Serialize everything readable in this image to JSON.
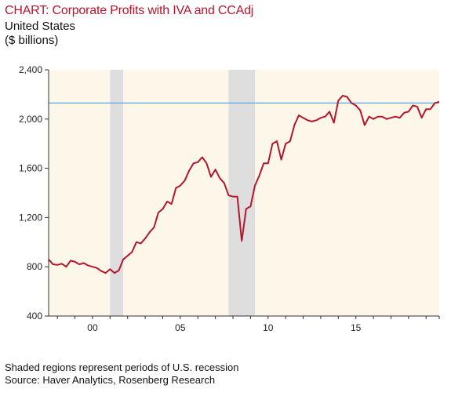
{
  "title": "CHART: Corporate Profits with IVA and CCAdj",
  "subtitle_line1": "United States",
  "subtitle_line2": "($ billions)",
  "footer": {
    "note": "Shaded regions represent periods of U.S. recession",
    "source": "Source: Haver Analytics, Rosenberg Research"
  },
  "colors": {
    "series": "#b5162b",
    "reference_line": "#5ea3e2",
    "plot_background": "#fdf7e9",
    "recession_shade": "#dedede",
    "title": "#b5162b"
  },
  "chart_data": {
    "type": "line",
    "xlim": [
      1997.5,
      2019.75
    ],
    "ylim": [
      400,
      2400
    ],
    "yticks": [
      400,
      800,
      1200,
      1600,
      2000,
      2400
    ],
    "ytick_labels": [
      "400",
      "800",
      "1,200",
      "1,600",
      "2,000",
      "2,400"
    ],
    "xticks": [
      2000,
      2005,
      2010,
      2015
    ],
    "xtick_labels": [
      "00",
      "05",
      "10",
      "15"
    ],
    "reference_line": 2130,
    "recessions": [
      [
        2001.0,
        2001.75
      ],
      [
        2007.75,
        2009.25
      ]
    ],
    "series": [
      {
        "x": [
          1997.5,
          1997.75,
          1998.0,
          1998.25,
          1998.5,
          1998.75,
          1999.0,
          1999.25,
          1999.5,
          1999.75,
          2000.0,
          2000.25,
          2000.5,
          2000.75,
          2001.0,
          2001.25,
          2001.5,
          2001.75,
          2002.0,
          2002.25,
          2002.5,
          2002.75,
          2003.0,
          2003.25,
          2003.5,
          2003.75,
          2004.0,
          2004.25,
          2004.5,
          2004.75,
          2005.0,
          2005.25,
          2005.5,
          2005.75,
          2006.0,
          2006.25,
          2006.5,
          2006.75,
          2007.0,
          2007.25,
          2007.5,
          2007.75,
          2008.0,
          2008.25,
          2008.5,
          2008.75,
          2009.0,
          2009.25,
          2009.5,
          2009.75,
          2010.0,
          2010.25,
          2010.5,
          2010.75,
          2011.0,
          2011.25,
          2011.5,
          2011.75,
          2012.0,
          2012.25,
          2012.5,
          2012.75,
          2013.0,
          2013.25,
          2013.5,
          2013.75,
          2014.0,
          2014.25,
          2014.5,
          2014.75,
          2015.0,
          2015.25,
          2015.5,
          2015.75,
          2016.0,
          2016.25,
          2016.5,
          2016.75,
          2017.0,
          2017.25,
          2017.5,
          2017.75,
          2018.0,
          2018.25,
          2018.5,
          2018.75,
          2019.0,
          2019.25,
          2019.5,
          2019.75
        ],
        "values": [
          860,
          820,
          815,
          825,
          800,
          850,
          840,
          820,
          830,
          810,
          800,
          790,
          765,
          750,
          780,
          750,
          770,
          860,
          890,
          920,
          1000,
          990,
          1030,
          1080,
          1120,
          1240,
          1270,
          1330,
          1310,
          1440,
          1460,
          1500,
          1580,
          1640,
          1650,
          1690,
          1640,
          1530,
          1590,
          1520,
          1480,
          1380,
          1370,
          1370,
          1010,
          1270,
          1290,
          1460,
          1540,
          1640,
          1640,
          1800,
          1820,
          1670,
          1800,
          1820,
          1950,
          2030,
          2010,
          1990,
          1980,
          1990,
          2010,
          2020,
          2060,
          1970,
          2150,
          2190,
          2180,
          2130,
          2110,
          2070,
          1950,
          2020,
          2000,
          2020,
          2020,
          2000,
          2010,
          2020,
          2010,
          2050,
          2060,
          2110,
          2100,
          2010,
          2080,
          2080,
          2130,
          2140
        ]
      }
    ]
  }
}
